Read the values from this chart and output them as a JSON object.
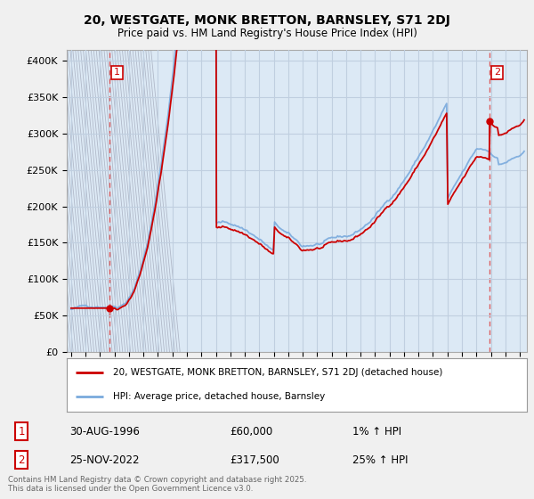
{
  "title_line1": "20, WESTGATE, MONK BRETTON, BARNSLEY, S71 2DJ",
  "title_line2": "Price paid vs. HM Land Registry's House Price Index (HPI)",
  "yticks": [
    0,
    50000,
    100000,
    150000,
    200000,
    250000,
    300000,
    350000,
    400000
  ],
  "ytick_labels": [
    "£0",
    "£50K",
    "£100K",
    "£150K",
    "£200K",
    "£250K",
    "£300K",
    "£350K",
    "£400K"
  ],
  "xmin": 1993.7,
  "xmax": 2025.5,
  "ymin": 0,
  "ymax": 415000,
  "background_color": "#f0f0f0",
  "plot_bg_color": "#dce9f5",
  "grid_color": "#c0cfe0",
  "hpi_line_color": "#7aaadd",
  "price_line_color": "#cc0000",
  "marker_color": "#cc0000",
  "sale1_x": 1996.66,
  "sale1_y": 60000,
  "sale2_x": 2022.9,
  "sale2_y": 317500,
  "legend_label1": "20, WESTGATE, MONK BRETTON, BARNSLEY, S71 2DJ (detached house)",
  "legend_label2": "HPI: Average price, detached house, Barnsley",
  "table_row1": [
    "1",
    "30-AUG-1996",
    "£60,000",
    "1% ↑ HPI"
  ],
  "table_row2": [
    "2",
    "25-NOV-2022",
    "£317,500",
    "25% ↑ HPI"
  ],
  "footnote": "Contains HM Land Registry data © Crown copyright and database right 2025.\nThis data is licensed under the Open Government Licence v3.0."
}
